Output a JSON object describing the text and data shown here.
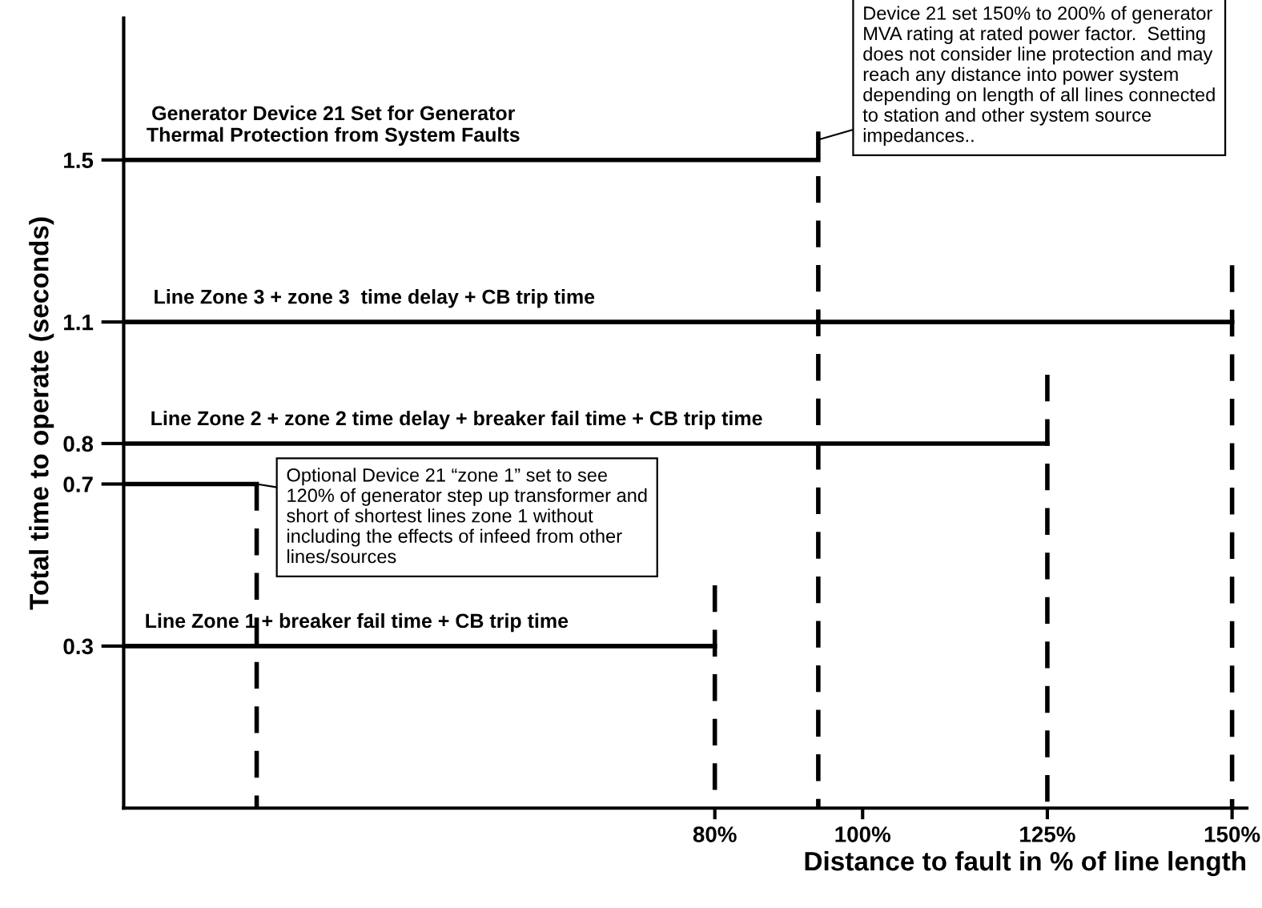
{
  "chart_data": {
    "type": "line",
    "xlabel": "Distance to fault in % of line length",
    "ylabel": "Total time to operate (seconds)",
    "xlim": [
      0,
      152
    ],
    "ylim": [
      -0.1,
      1.85
    ],
    "xticks": [
      {
        "value": 80,
        "label": "80%"
      },
      {
        "value": 100,
        "label": "100%"
      },
      {
        "value": 125,
        "label": "125%"
      },
      {
        "value": 150,
        "label": "150%"
      }
    ],
    "yticks": [
      0.3,
      0.7,
      0.8,
      1.1,
      1.5
    ],
    "grid": false,
    "legend": false,
    "marker": "none",
    "series": [
      {
        "name": "Generator Device 21 Set for Generator\nThermal Protection from System Faults",
        "color": "#000000",
        "x": [
          0,
          94
        ],
        "values": [
          1.5,
          1.5
        ],
        "line_style": "solid"
      },
      {
        "name": "Line Zone 3 + zone 3  time delay + CB trip time",
        "color": "#000000",
        "x": [
          0,
          150
        ],
        "values": [
          1.1,
          1.1
        ],
        "line_style": "solid"
      },
      {
        "name": "Line Zone 2 + zone 2 time delay + breaker fail time + CB trip time",
        "color": "#000000",
        "x": [
          0,
          125
        ],
        "values": [
          0.8,
          0.8
        ],
        "line_style": "solid"
      },
      {
        "color": "#000000",
        "x": [
          0,
          18
        ],
        "values": [
          0.7,
          0.7
        ],
        "line_style": "solid"
      },
      {
        "name": "Line Zone 1 + breaker fail time + CB trip time",
        "color": "#000000",
        "x": [
          0,
          80
        ],
        "values": [
          0.3,
          0.3
        ],
        "line_style": "solid"
      },
      {
        "color": "#000000",
        "x": [
          94,
          94
        ],
        "values": [
          1.57,
          -0.1
        ],
        "line_style": "dashed"
      },
      {
        "color": "#000000",
        "x": [
          150,
          150
        ],
        "values": [
          1.24,
          -0.1
        ],
        "line_style": "dashed"
      },
      {
        "color": "#000000",
        "x": [
          125,
          125
        ],
        "values": [
          0.97,
          -0.1
        ],
        "line_style": "dashed"
      },
      {
        "color": "#000000",
        "x": [
          18,
          18
        ],
        "values": [
          0.7,
          -0.1
        ],
        "line_style": "dashed"
      },
      {
        "color": "#000000",
        "x": [
          80,
          80
        ],
        "values": [
          0.45,
          -0.1
        ],
        "line_style": "dashed"
      }
    ],
    "annotations": [
      {
        "text": "Device 21 set 150% to 200% of generator\nMVA rating at rated power factor.  Setting\ndoes not consider line protection and may\nreach any distance into power system\ndepending on length of all lines connected\nto station and other system source\nimpedances..",
        "x": 94,
        "y": 1.55
      },
      {
        "text": "Optional Device 21 “zone 1” set to see\n120% of generator step up transformer and\nshort of shortest lines zone 1 without\nincluding the effects of infeed from other\nlines/sources",
        "x": 18,
        "y": 0.7
      }
    ]
  }
}
